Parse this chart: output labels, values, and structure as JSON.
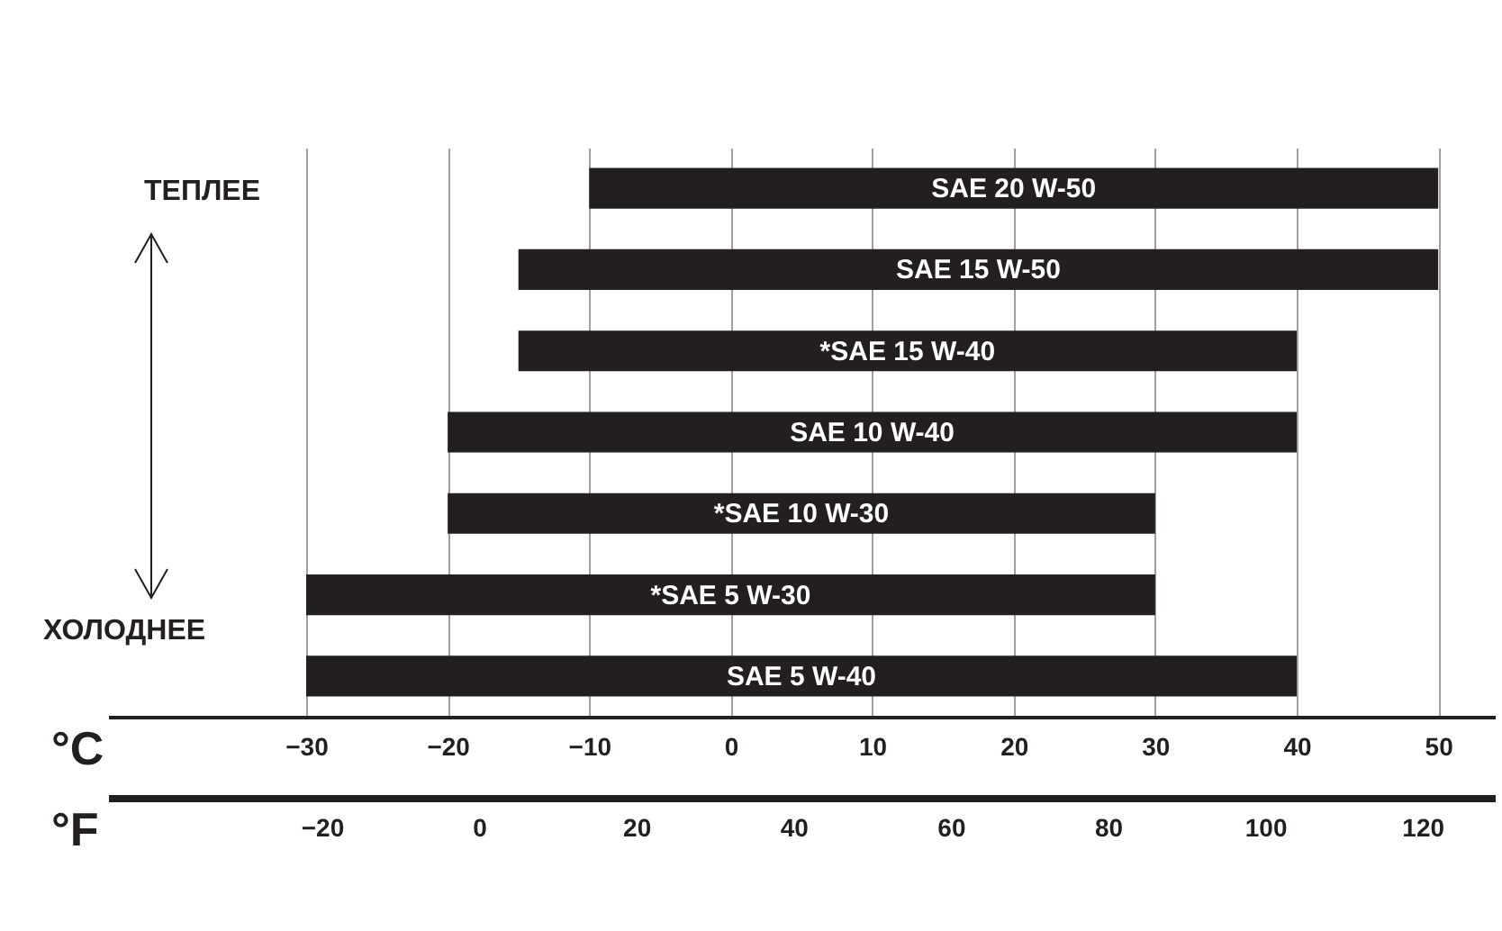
{
  "chart_data": {
    "type": "bar",
    "orientation": "horizontal",
    "categories": [
      "SAE 20 W-50",
      "SAE 15 W-50",
      "*SAE 15 W-40",
      "SAE 10 W-40",
      "*SAE 10 W-30",
      "*SAE 5 W-30",
      "SAE 5 W-40"
    ],
    "base": [
      -10,
      -15,
      -15,
      -20,
      -20,
      -30,
      -30
    ],
    "values": [
      60,
      65,
      55,
      60,
      50,
      60,
      70
    ],
    "color": "#231f20",
    "xlabel": "°C",
    "x2label": "°F",
    "xlim": [
      -44,
      54
    ],
    "xticks": [
      -30,
      -20,
      -10,
      0,
      10,
      20,
      30,
      40,
      50
    ],
    "x2lim": [
      -47.2,
      129.2
    ],
    "x2ticks": [
      -20,
      0,
      20,
      40,
      60,
      80,
      100,
      120
    ],
    "grid": "x",
    "annotations": [
      "ТЕПЛЕЕ",
      "ХОЛОДНЕЕ"
    ]
  }
}
